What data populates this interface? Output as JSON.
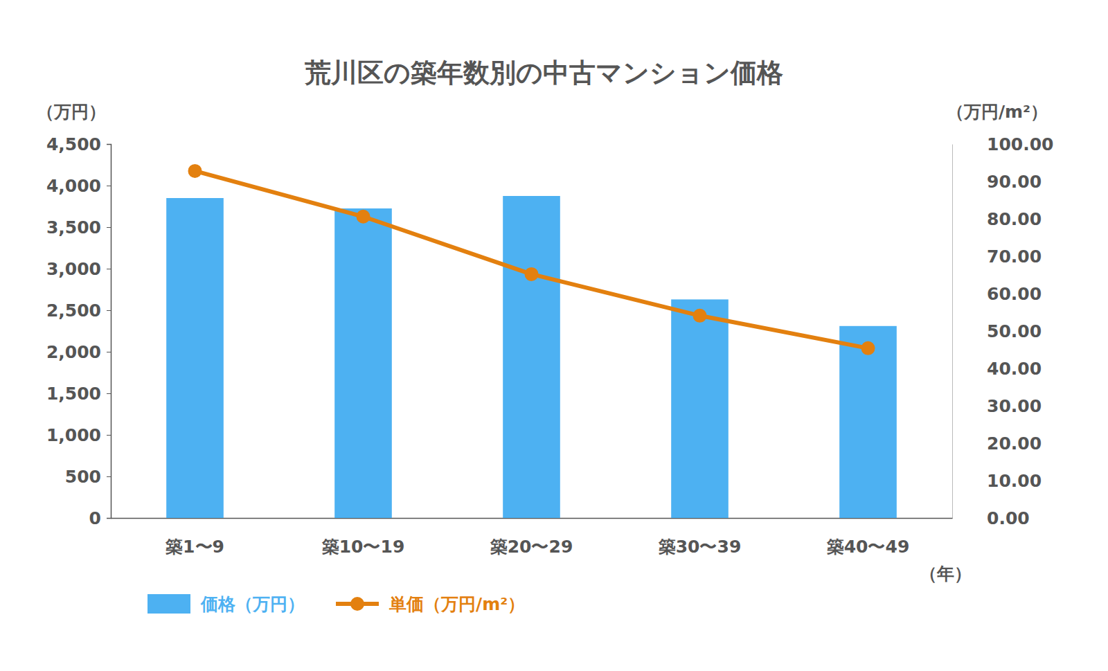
{
  "chart_data": {
    "type": "bar",
    "title": "荒川区の築年数別の中古マンション価格",
    "y_label": "（万円）",
    "y2_label": "（万円/m²）",
    "x_label": "（年）",
    "categories": [
      "築1〜9",
      "築10〜19",
      "築20〜29",
      "築30〜39",
      "築40〜49"
    ],
    "series": [
      {
        "name": "価格（万円）",
        "type": "bar",
        "color": "#4db1f2",
        "values": [
          3850,
          3725,
          3875,
          2630,
          2310
        ]
      },
      {
        "name": "単価（万円/m²）",
        "type": "line",
        "axis": "y2",
        "color": "#e3800f",
        "marker": "circle",
        "values": [
          92.8,
          80.6,
          65.2,
          54.1,
          45.4
        ]
      }
    ],
    "ylim": [
      0,
      4500
    ],
    "yticks": [
      0,
      500,
      {
        "value": 1000,
        "label": "1,000"
      },
      {
        "value": 1500,
        "label": "1,500"
      },
      {
        "value": 2000,
        "label": "2,000"
      },
      {
        "value": 2500,
        "label": "2,500"
      },
      {
        "value": 3000,
        "label": "3,000"
      },
      {
        "value": 3500,
        "label": "3,500"
      },
      {
        "value": 4000,
        "label": "4,000"
      },
      {
        "value": 4500,
        "label": "4,500"
      }
    ],
    "y2lim": [
      0,
      100
    ],
    "y2ticks": [
      {
        "value": 0,
        "label": "0.00"
      },
      {
        "value": 10,
        "label": "10.00"
      },
      {
        "value": 20,
        "label": "20.00"
      },
      {
        "value": 30,
        "label": "30.00"
      },
      {
        "value": 40,
        "label": "40.00"
      },
      {
        "value": 50,
        "label": "50.00"
      },
      {
        "value": 60,
        "label": "60.00"
      },
      {
        "value": 70,
        "label": "70.00"
      },
      {
        "value": 80,
        "label": "80.00"
      },
      {
        "value": 90,
        "label": "90.00"
      },
      {
        "value": 100,
        "label": "100.00"
      }
    ],
    "grid": false,
    "legend": "bottom"
  }
}
